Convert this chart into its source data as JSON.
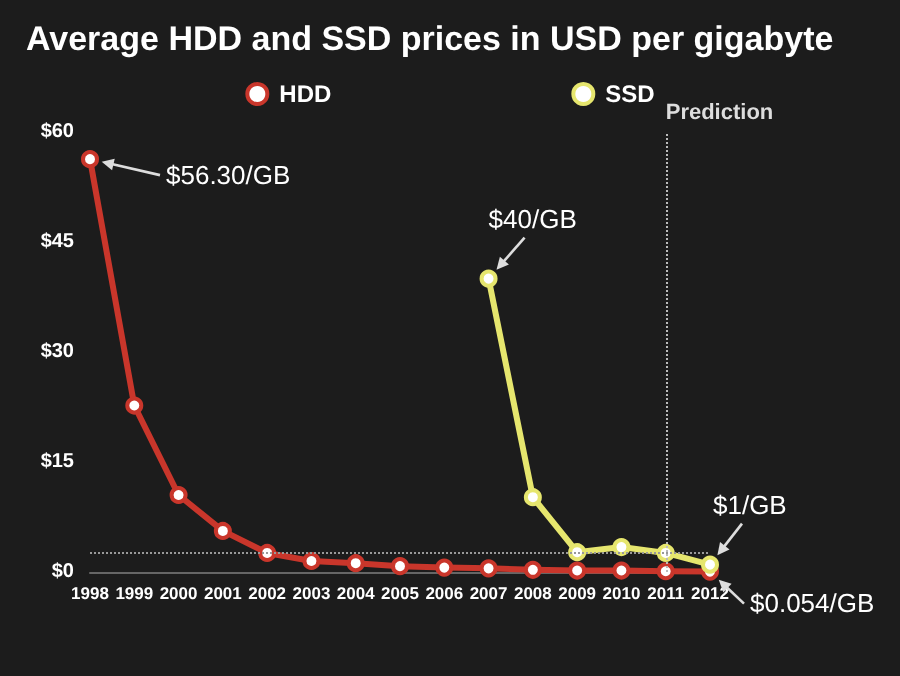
{
  "chart_data": {
    "type": "line",
    "title": "Average HDD and SSD prices in USD per gigabyte",
    "categories": [
      "1998",
      "1999",
      "2000",
      "2001",
      "2002",
      "2003",
      "2004",
      "2005",
      "2006",
      "2007",
      "2008",
      "2009",
      "2010",
      "2011",
      "2012"
    ],
    "series": [
      {
        "name": "HDD",
        "color": "#c9362b",
        "values": [
          56.3,
          22.7,
          10.5,
          5.6,
          2.6,
          1.5,
          1.2,
          0.8,
          0.6,
          0.5,
          0.3,
          0.2,
          0.2,
          0.1,
          0.054
        ]
      },
      {
        "name": "SSD",
        "color": "#e6e66e",
        "values": [
          null,
          null,
          null,
          null,
          null,
          null,
          null,
          null,
          null,
          40,
          10.2,
          2.7,
          3.4,
          2.6,
          1
        ]
      }
    ],
    "ylim": [
      0,
      60
    ],
    "yticks": [
      {
        "value": 0,
        "label": "$0"
      },
      {
        "value": 15,
        "label": "$15"
      },
      {
        "value": 30,
        "label": "$30"
      },
      {
        "value": 45,
        "label": "$45"
      },
      {
        "value": 60,
        "label": "$60"
      }
    ],
    "annotations": [
      {
        "text": "$56.30/GB",
        "x": "1998",
        "y": 56.3
      },
      {
        "text": "$40/GB",
        "x": "2007",
        "y": 40
      },
      {
        "text": "$1/GB",
        "x": "2012",
        "y": 1
      },
      {
        "text": "$0.054/GB",
        "x": "2012",
        "y": 0.054
      }
    ],
    "ref_lines": [
      {
        "axis": "x",
        "value": "2011",
        "label": "Prediction",
        "color": "#bbbbbb",
        "line_style": "dotted"
      },
      {
        "axis": "y",
        "value": 2.7,
        "color": "#999999",
        "line_style": "dotted"
      }
    ],
    "grid": false,
    "legend": "top",
    "marker": "circle",
    "line_style": "solid"
  }
}
